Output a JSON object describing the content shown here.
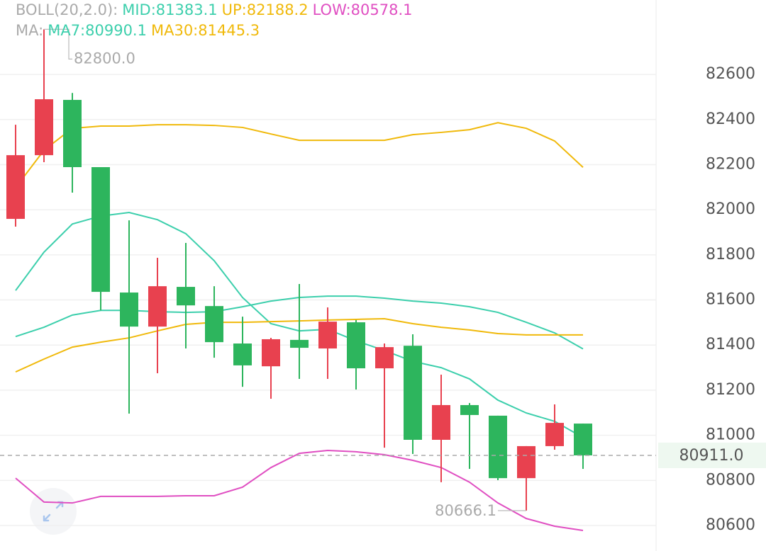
{
  "chart_data": {
    "type": "candlestick",
    "up_color": "#e8414f",
    "down_color": "#2db55d",
    "open": [
      81959.5,
      82242,
      82487,
      82189,
      81633,
      81482,
      81658,
      81573,
      81407,
      81306,
      81423,
      81385,
      81501,
      81297,
      81397,
      80980,
      81134,
      81087,
      80810,
      80952,
      81052
    ],
    "high": [
      82377,
      82800,
      82518,
      82189,
      81953,
      81787,
      81853,
      81661,
      81526,
      81432,
      81671,
      81567,
      81511,
      81407,
      81448,
      81269,
      81143,
      81087,
      80952,
      81137,
      81052
    ],
    "low": [
      81925,
      82211,
      82076,
      81554,
      81096,
      81275,
      81385,
      81344,
      81215,
      81162,
      81250,
      81250,
      81203,
      80945,
      80917,
      80792,
      80851,
      80801,
      80666.1,
      80936,
      80851
    ],
    "close": [
      82242,
      82490,
      82189,
      81636,
      81482,
      81661,
      81576,
      81413,
      81310,
      81426,
      81388,
      81504,
      81297,
      81391,
      80980,
      81134,
      81090,
      80810,
      80952,
      81055,
      80911
    ],
    "lines": [
      {
        "color": "#f0b90b",
        "values": [
          82098,
          82264,
          82361,
          82371,
          82371,
          82377,
          82377,
          82374,
          82365,
          82336,
          82308,
          82308,
          82308,
          82308,
          82333,
          82343,
          82355,
          82386,
          82361,
          82305,
          82188.2
        ]
      },
      {
        "color": "#3ccfac",
        "values": [
          81438,
          81479,
          81533,
          81554,
          81554,
          81548,
          81545,
          81548,
          81570,
          81595,
          81611,
          81617,
          81617,
          81608,
          81595,
          81586,
          81570,
          81545,
          81501,
          81454,
          81383.1
        ]
      },
      {
        "color": "#e04fc2",
        "values": [
          80810,
          80704,
          80700,
          80729,
          80729,
          80729,
          80732,
          80732,
          80770,
          80857,
          80920,
          80933,
          80927,
          80914,
          80889,
          80857,
          80792,
          80700,
          80631,
          80597,
          80578.1
        ]
      },
      {
        "color": "#3ccfac",
        "values": [
          81642,
          81812,
          81937,
          81972,
          81988,
          81956,
          81894,
          81774,
          81611,
          81495,
          81463,
          81470,
          81419,
          81376,
          81328,
          81300,
          81250,
          81156,
          81099,
          81062,
          80990.1
        ]
      },
      {
        "color": "#f0b90b",
        "values": [
          81281,
          81338,
          81391,
          81413,
          81432,
          81463,
          81492,
          81501,
          81501,
          81504,
          81507,
          81511,
          81514,
          81517,
          81495,
          81479,
          81467,
          81451,
          81445,
          81445,
          81445.3
        ]
      }
    ],
    "legend": [
      [
        {
          "text": "BOLL(20,2.0):",
          "color": "#aaaaaa"
        },
        {
          "text": "MID:81383.1",
          "color": "#3ccfac"
        },
        {
          "text": "UP:82188.2",
          "color": "#f0b90b"
        },
        {
          "text": "LOW:80578.1",
          "color": "#e04fc2"
        }
      ],
      [
        {
          "text": "MA:",
          "color": "#aaaaaa"
        },
        {
          "text": "MA7:80990.1",
          "color": "#3ccfac"
        },
        {
          "text": "MA30:81445.3",
          "color": "#f0b90b"
        }
      ]
    ],
    "annotations": [
      {
        "value": 82800,
        "label": "82800.0"
      },
      {
        "value": 80666.1,
        "label": "80666.1"
      }
    ],
    "last_price": {
      "value": 80911,
      "label": "80911.0",
      "color": "#2db55d"
    },
    "ylim": [
      80487,
      82930
    ],
    "yticks": [
      80600,
      80800,
      81000,
      81200,
      81400,
      81600,
      81800,
      82000,
      82200,
      82400,
      82600
    ],
    "grid": true
  }
}
